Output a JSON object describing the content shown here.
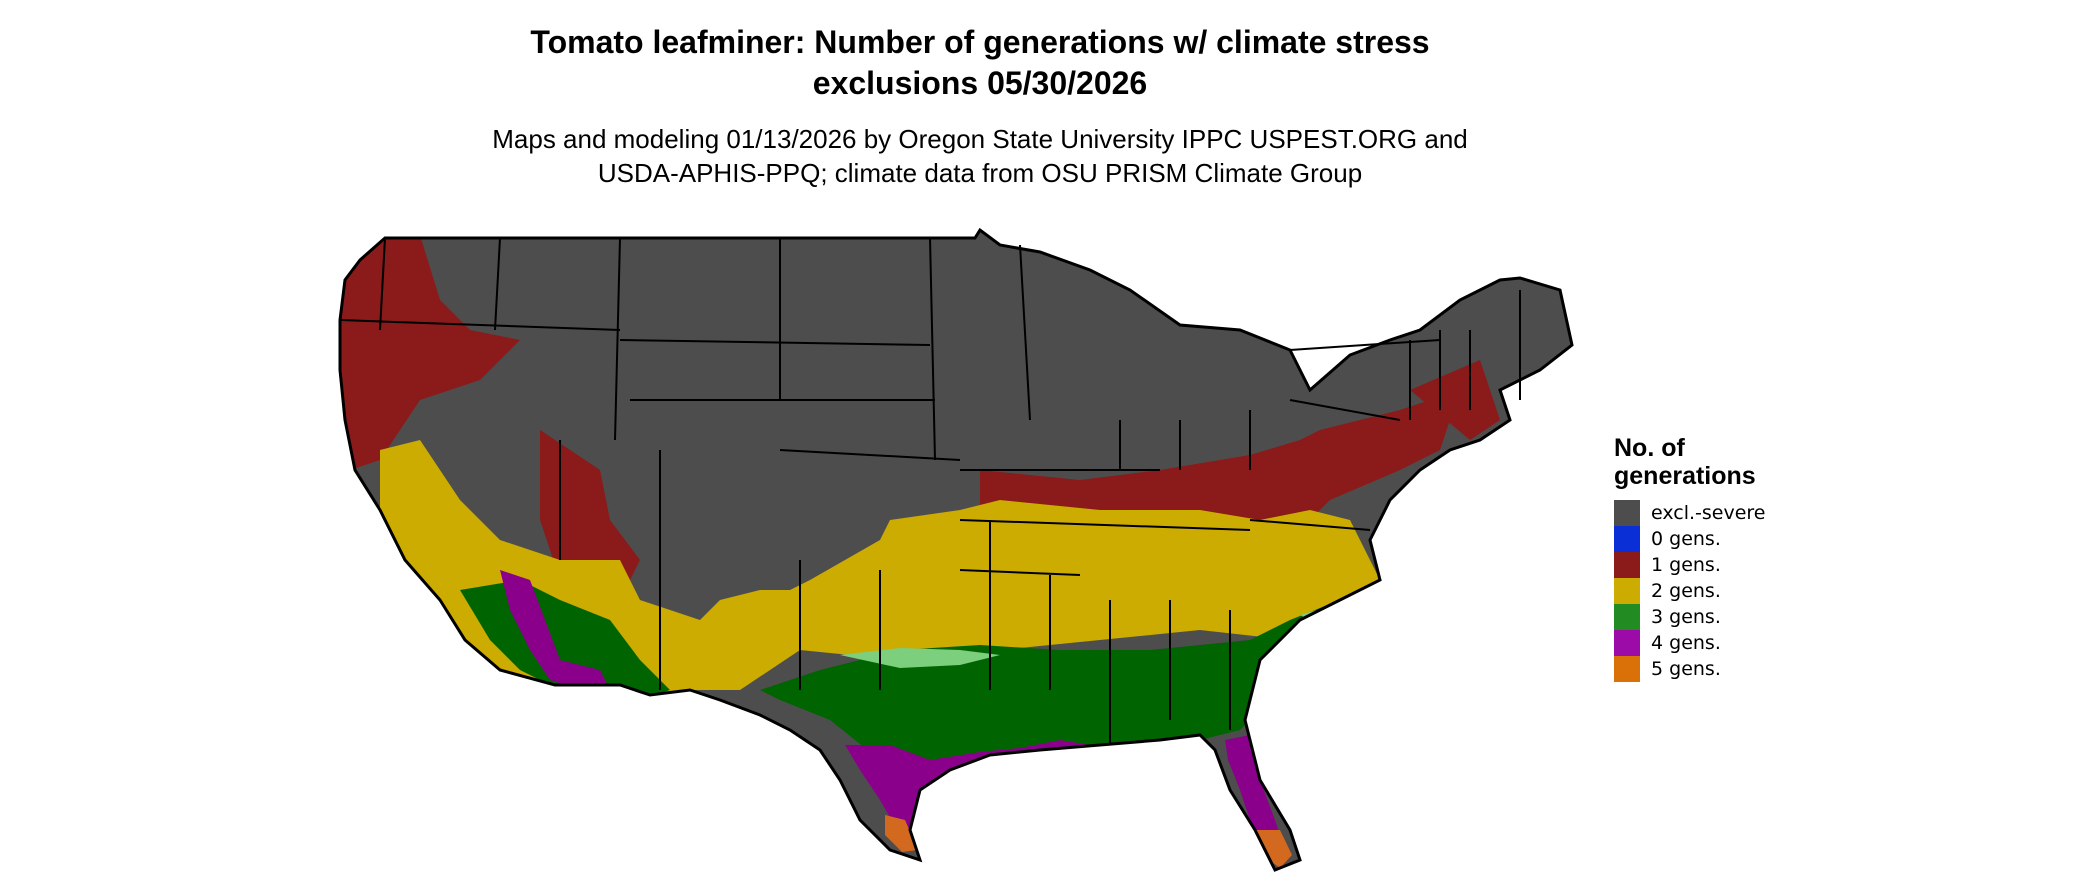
{
  "title_lines": [
    "Tomato leafminer: Number of generations w/ climate stress",
    "exclusions 05/30/2026"
  ],
  "subtitle_lines": [
    "Maps and modeling 01/13/2026 by Oregon State University IPPC USPEST.ORG and",
    "USDA-APHIS-PPQ; climate data from OSU PRISM Climate Group"
  ],
  "legend": {
    "title_lines": [
      "No. of",
      "generations"
    ],
    "items": [
      {
        "label": "excl.-severe",
        "color": "#4d4d4d"
      },
      {
        "label": "0 gens.",
        "color": "#0a2fd6"
      },
      {
        "label": "1 gens.",
        "color": "#8b1a1a"
      },
      {
        "label": "2 gens.",
        "color": "#ccac00"
      },
      {
        "label": "3 gens.",
        "color": "#228b22"
      },
      {
        "label": "4 gens.",
        "color": "#9c0aa8"
      },
      {
        "label": "5 gens.",
        "color": "#d97008"
      }
    ]
  },
  "map_colors": {
    "excluded": "#4d4d4d",
    "one": "#8b1a1a",
    "two": "#ccac00",
    "three": "#006400",
    "three_light": "#7ccf7c",
    "four": "#8b008b",
    "five": "#d2691e",
    "border": "#000000"
  }
}
